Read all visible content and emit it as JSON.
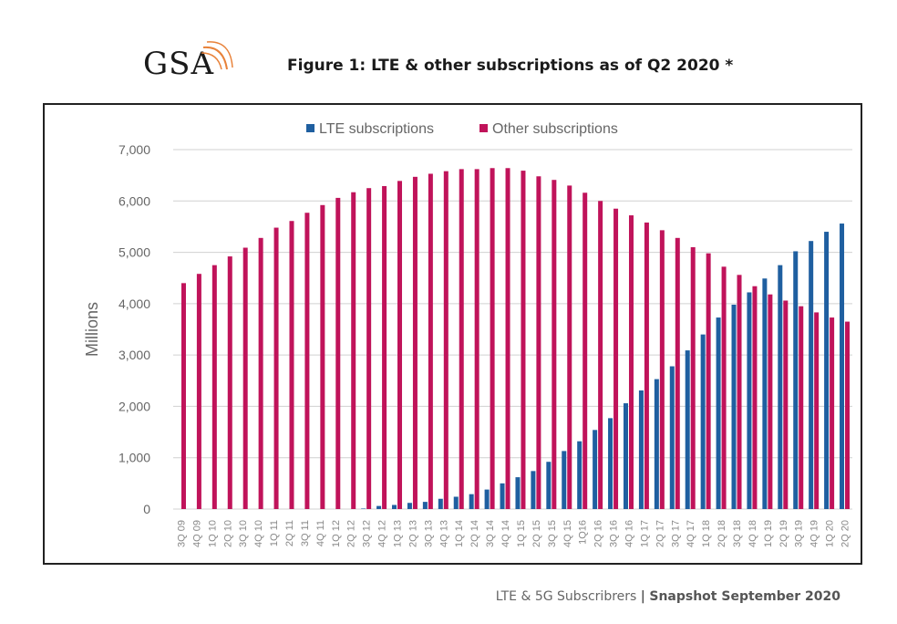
{
  "header": {
    "logo_text": "GSA",
    "title": "Figure 1: LTE & other subscriptions as of Q2 2020 *"
  },
  "footer": {
    "left": "LTE & 5G Subscribrers",
    "separator": "|",
    "right": "Snapshot September 2020"
  },
  "chart_data": {
    "type": "bar",
    "title": "",
    "xlabel": "",
    "ylabel": "Millions",
    "ylim": [
      0,
      7000
    ],
    "yticks": [
      "0",
      "1,000",
      "2,000",
      "3,000",
      "4,000",
      "5,000",
      "6,000",
      "7,000"
    ],
    "grid": true,
    "legend_placement": "top-center",
    "categories": [
      "3Q 09",
      "4Q 09",
      "1Q 10",
      "2Q 10",
      "3Q 10",
      "4Q 10",
      "1Q 11",
      "2Q 11",
      "3Q 11",
      "4Q 11",
      "1Q 12",
      "2Q 12",
      "3Q 12",
      "4Q 12",
      "1Q 13",
      "2Q 13",
      "3Q 13",
      "4Q 13",
      "1Q 14",
      "2Q 14",
      "3Q 14",
      "4Q 14",
      "1Q 15",
      "2Q 15",
      "3Q 15",
      "4Q 15",
      "1Q16",
      "2Q 16",
      "3Q 16",
      "4Q 16",
      "1Q 17",
      "2Q 17",
      "3Q 17",
      "4Q 17",
      "1Q 18",
      "2Q 18",
      "3Q 18",
      "4Q 18",
      "1Q 19",
      "2Q 19",
      "3Q 19",
      "4Q 19",
      "1Q 20",
      "2Q 20"
    ],
    "series": [
      {
        "name": "LTE subscriptions",
        "color": "#1f5fa0",
        "values": [
          0,
          0,
          0,
          0,
          0,
          0,
          0,
          0,
          0,
          0,
          0,
          0,
          10,
          60,
          80,
          120,
          140,
          200,
          240,
          290,
          380,
          500,
          620,
          740,
          920,
          1130,
          1320,
          1540,
          1770,
          2060,
          2310,
          2530,
          2780,
          3090,
          3400,
          3730,
          3980,
          4220,
          4490,
          4750,
          5020,
          5220,
          5400,
          5560
        ]
      },
      {
        "name": "Other subscriptions",
        "color": "#c0135a",
        "values": [
          4400,
          4580,
          4750,
          4920,
          5090,
          5280,
          5480,
          5610,
          5770,
          5920,
          6060,
          6170,
          6250,
          6290,
          6390,
          6470,
          6530,
          6580,
          6620,
          6620,
          6640,
          6640,
          6590,
          6480,
          6410,
          6300,
          6160,
          6000,
          5850,
          5720,
          5580,
          5430,
          5280,
          5100,
          4980,
          4720,
          4560,
          4340,
          4180,
          4060,
          3950,
          3830,
          3730,
          3650
        ]
      }
    ]
  }
}
